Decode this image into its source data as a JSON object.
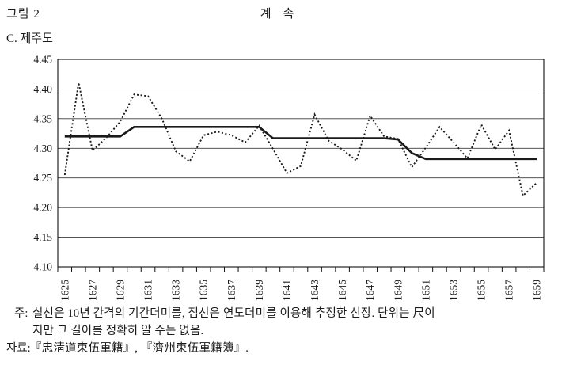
{
  "header": {
    "figure_label": "그림 2",
    "continued_label": "계    속",
    "panel_label": "C. 제주도"
  },
  "chart_data": {
    "type": "line",
    "title": "C. 제주도",
    "xlabel": "",
    "ylabel": "",
    "ylim": [
      4.1,
      4.45
    ],
    "ytick_step": 0.05,
    "ytick_labels": [
      "4.10",
      "4.15",
      "4.20",
      "4.25",
      "4.30",
      "4.35",
      "4.40",
      "4.45"
    ],
    "xtick_labels": [
      "1625",
      "1627",
      "1629",
      "1631",
      "1633",
      "1635",
      "1637",
      "1639",
      "1641",
      "1643",
      "1645",
      "1647",
      "1649",
      "1651",
      "1653",
      "1655",
      "1657",
      "1659"
    ],
    "grid": "horizontal",
    "legend": "none",
    "line_color": "#1a1a1a",
    "years": [
      1625,
      1626,
      1627,
      1628,
      1629,
      1630,
      1631,
      1632,
      1633,
      1634,
      1635,
      1636,
      1637,
      1638,
      1639,
      1640,
      1641,
      1642,
      1643,
      1644,
      1645,
      1646,
      1647,
      1648,
      1649,
      1650,
      1651,
      1652,
      1653,
      1654,
      1655,
      1656,
      1657,
      1658,
      1659
    ],
    "series": [
      {
        "name": "실선(10년 간격 기간더미 추정 신장)",
        "style": "solid",
        "values": [
          4.32,
          4.32,
          4.32,
          4.32,
          4.32,
          4.336,
          4.336,
          4.336,
          4.336,
          4.336,
          4.336,
          4.336,
          4.336,
          4.336,
          4.336,
          4.317,
          4.317,
          4.317,
          4.317,
          4.317,
          4.317,
          4.317,
          4.317,
          4.317,
          4.315,
          4.292,
          4.282,
          4.282,
          4.282,
          4.282,
          4.282,
          4.282,
          4.282,
          4.282,
          4.282
        ]
      },
      {
        "name": "점선(연도더미 추정 신장)",
        "style": "dotted",
        "values": [
          4.255,
          4.411,
          4.296,
          4.318,
          4.345,
          4.391,
          4.388,
          4.35,
          4.295,
          4.278,
          4.322,
          4.328,
          4.322,
          4.31,
          4.338,
          4.299,
          4.258,
          4.27,
          4.357,
          4.313,
          4.298,
          4.279,
          4.355,
          4.32,
          4.316,
          4.268,
          4.301,
          4.336,
          4.31,
          4.283,
          4.34,
          4.298,
          4.33,
          4.22,
          4.242
        ]
      }
    ]
  },
  "notes": {
    "note_label": "주:",
    "note_line1": "실선은 10년 간격의 기간더미를, 점선은 연도더미를 이용해 추정한 신장. 단위는 尺이",
    "note_line2": "지만 그 길이를 정확히 알 수는 없음.",
    "source_label": "자료:",
    "source_text": "『忠淸道束伍軍籍』, 『濟州束伍軍籍簿』."
  }
}
